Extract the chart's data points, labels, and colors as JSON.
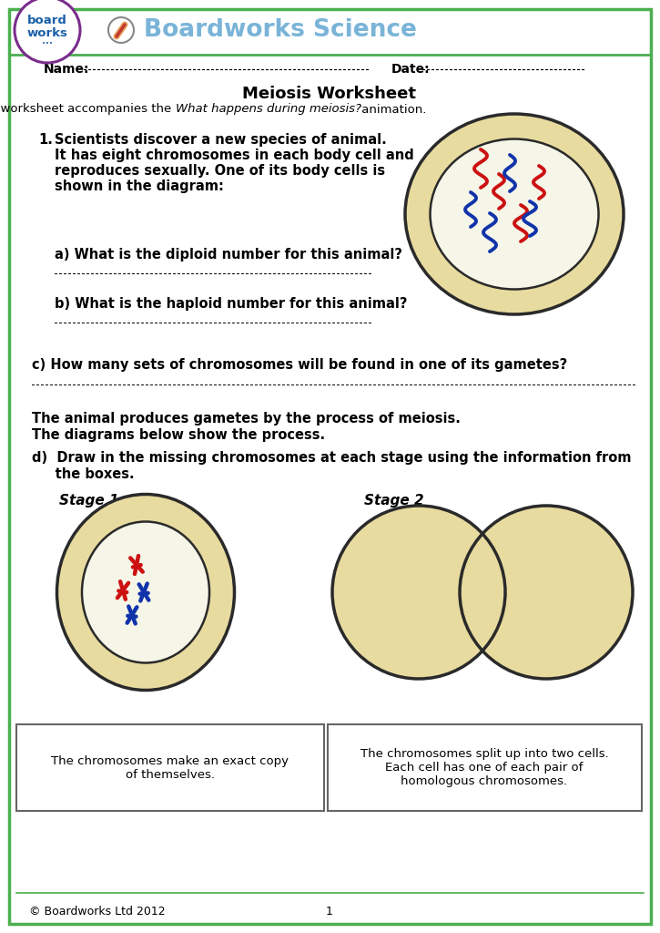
{
  "title": "Meiosis Worksheet",
  "subtitle_pre": "This worksheet accompanies the ",
  "subtitle_italic": "What happens during meiosis?",
  "subtitle_post": " animation.",
  "header_title": "Boardworks Science",
  "name_label": "Name:",
  "date_label": "Date:",
  "q1_lines": [
    "Scientists discover a new species of animal.",
    "It has eight chromosomes in each body cell and",
    "reproduces sexually. One of its body cells is",
    "shown in the diagram:"
  ],
  "qa": "a) What is the diploid number for this animal?",
  "qb": "b) What is the haploid number for this animal?",
  "qc": "c) How many sets of chromosomes will be found in one of its gametes?",
  "para_lines": [
    "The animal produces gametes by the process of meiosis.",
    "The diagrams below show the process."
  ],
  "qd1": "d)  Draw in the missing chromosomes at each stage using the information from",
  "qd2": "     the boxes.",
  "stage1_label": "Stage 1",
  "stage2_label": "Stage 2",
  "box1_text": "The chromosomes make an exact copy\nof themselves.",
  "box2_text": "The chromosomes split up into two cells.\nEach cell has one of each pair of\nhomologous chromosomes.",
  "footer": "© Boardworks Ltd 2012",
  "page_num": "1",
  "border_color": "#4caf50",
  "header_color": "#7ab4d8",
  "tan_color": "#e8dba0",
  "nucleus_color": "#f5f5e8",
  "dark_border": "#2a2a2a",
  "red_chrom": "#cc1111",
  "blue_chrom": "#1133aa"
}
